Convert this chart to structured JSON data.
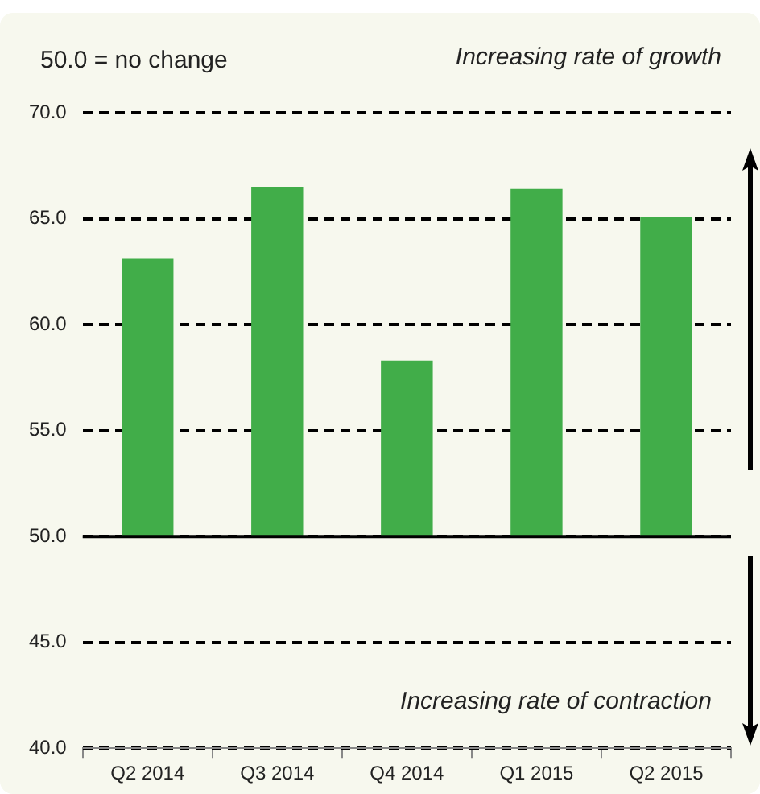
{
  "chart_data": {
    "type": "bar",
    "categories": [
      "Q2 2014",
      "Q3 2014",
      "Q4 2014",
      "Q1 2015",
      "Q2 2015"
    ],
    "base": [
      50,
      50,
      50,
      50,
      50
    ],
    "values": [
      13.1,
      16.5,
      8.3,
      16.4,
      15.1
    ],
    "color": "#41ad49",
    "ylim": [
      40,
      70
    ],
    "yticks": [
      {
        "value": 40,
        "label": "40.0"
      },
      {
        "value": 45,
        "label": "45.0"
      },
      {
        "value": 50,
        "label": "50.0"
      },
      {
        "value": 55,
        "label": "55.0"
      },
      {
        "value": 60,
        "label": "60.0"
      },
      {
        "value": 65,
        "label": "65.0"
      },
      {
        "value": 70,
        "label": "70.0"
      }
    ],
    "grid": "y",
    "ref_lines": [
      {
        "axis": "y",
        "value": 50,
        "label": null,
        "color": "#000000",
        "line_style": "solid"
      }
    ],
    "annotations": [
      "50.0 = no change",
      "Increasing rate of growth",
      "Increasing rate of contraction"
    ],
    "legend": false
  }
}
